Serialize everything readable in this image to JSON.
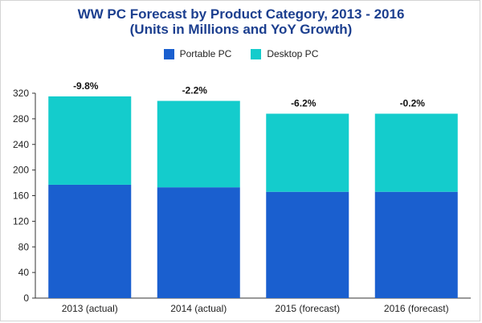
{
  "chart_data": {
    "type": "bar",
    "stacked": true,
    "title": "WW PC Forecast by Product Category, 2013 - 2016",
    "subtitle": "(Units in Millions and YoY Growth)",
    "categories": [
      "2013 (actual)",
      "2014 (actual)",
      "2015 (forecast)",
      "2016 (forecast)"
    ],
    "series": [
      {
        "name": "Portable PC",
        "color": "#1a5fcf",
        "values": [
          177,
          173,
          166,
          166
        ]
      },
      {
        "name": "Desktop PC",
        "color": "#14cccc",
        "values": [
          138,
          135,
          122,
          122
        ]
      }
    ],
    "growth_labels": [
      "-9.8%",
      "-2.2%",
      "-6.2%",
      "-0.2%"
    ],
    "ylim": [
      0,
      320
    ],
    "yticks": [
      0,
      40,
      80,
      120,
      160,
      200,
      240,
      280,
      320
    ],
    "grid": false,
    "legend_position": "top-center"
  }
}
